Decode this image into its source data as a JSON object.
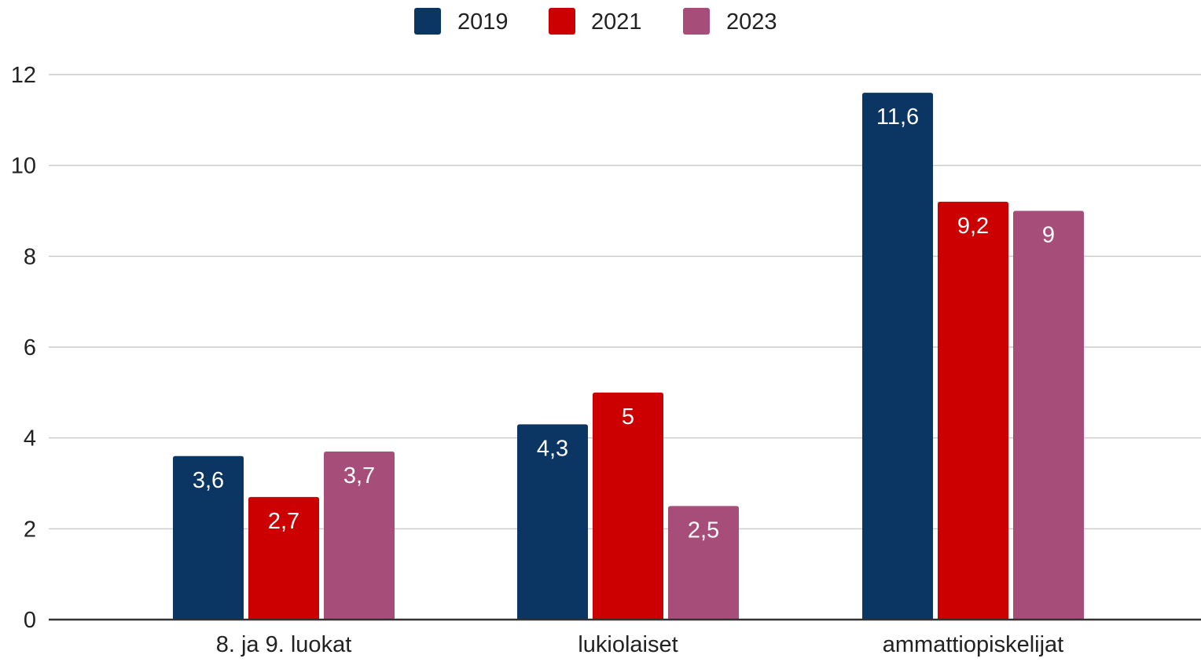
{
  "chart_data": {
    "type": "bar",
    "categories": [
      "8. ja 9. luokat",
      "lukiolaiset",
      "ammattiopiskelijat"
    ],
    "series": [
      {
        "name": "2019",
        "values": [
          3.6,
          4.3,
          11.6
        ],
        "labels": [
          "3,6",
          "4,3",
          "11,6"
        ],
        "color": "#0b3562"
      },
      {
        "name": "2021",
        "values": [
          2.7,
          5,
          9.2
        ],
        "labels": [
          "2,7",
          "5",
          "9,2"
        ],
        "color": "#cc0000"
      },
      {
        "name": "2023",
        "values": [
          3.7,
          2.5,
          9
        ],
        "labels": [
          "3,7",
          "2,5",
          "9"
        ],
        "color": "#a64d79"
      }
    ],
    "ylim": [
      0,
      12
    ],
    "yticks": [
      0,
      2,
      4,
      6,
      8,
      10,
      12
    ],
    "ytick_labels": [
      "0",
      "2",
      "4",
      "6",
      "8",
      "10",
      "12"
    ],
    "grid": true,
    "legend_position": "top",
    "title": "",
    "xlabel": "",
    "ylabel": ""
  }
}
